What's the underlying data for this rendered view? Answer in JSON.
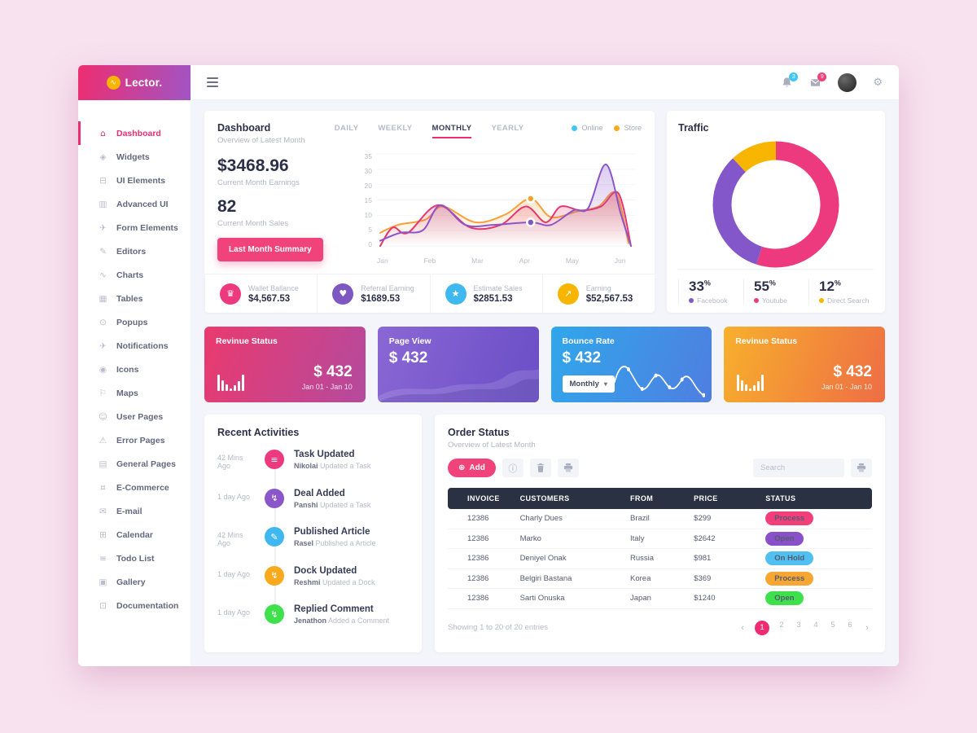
{
  "app": {
    "logo_text": "Lector."
  },
  "header": {
    "badge_notifications": "3",
    "badge_messages": "9"
  },
  "sidebar": {
    "items": [
      {
        "label": "Dashboard",
        "glyph": "⌂",
        "icon": "home-icon",
        "class": "active"
      },
      {
        "label": "Widgets",
        "glyph": "◈",
        "icon": "widgets-icon"
      },
      {
        "label": "UI Elements",
        "glyph": "⊟",
        "icon": "ui-elements-icon"
      },
      {
        "label": "Advanced UI",
        "glyph": "▥",
        "icon": "chart-bar-icon"
      },
      {
        "label": "Form Elements",
        "glyph": "✈",
        "icon": "paper-plane-icon"
      },
      {
        "label": "Editors",
        "glyph": "✎",
        "icon": "edit-icon"
      },
      {
        "label": "Charts",
        "glyph": "∿",
        "icon": "line-chart-icon"
      },
      {
        "label": "Tables",
        "glyph": "▦",
        "icon": "table-icon"
      },
      {
        "label": "Popups",
        "glyph": "⊙",
        "icon": "search-icon"
      },
      {
        "label": "Notifications",
        "glyph": "✈",
        "icon": "send-icon"
      },
      {
        "label": "Icons",
        "glyph": "◉",
        "icon": "icons-icon"
      },
      {
        "label": "Maps",
        "glyph": "⚐",
        "icon": "map-pin-icon"
      },
      {
        "label": "User Pages",
        "glyph": "☺",
        "icon": "user-icon"
      },
      {
        "label": "Error Pages",
        "glyph": "⚠",
        "icon": "error-icon"
      },
      {
        "label": "General Pages",
        "glyph": "▤",
        "icon": "file-icon"
      },
      {
        "label": "E-Commerce",
        "glyph": "¤",
        "icon": "cart-icon"
      },
      {
        "label": "E-mail",
        "glyph": "✉",
        "icon": "mail-icon"
      },
      {
        "label": "Calendar",
        "glyph": "⊞",
        "icon": "calendar-icon"
      },
      {
        "label": "Todo List",
        "glyph": "≡",
        "icon": "todo-list-icon"
      },
      {
        "label": "Gallery",
        "glyph": "▣",
        "icon": "gallery-icon"
      },
      {
        "label": "Documentation",
        "glyph": "⊡",
        "icon": "docs-icon"
      }
    ]
  },
  "dashboard": {
    "title": "Dashboard",
    "subtitle": "Overview of Latest Month",
    "tabs": [
      {
        "label": "DAILY"
      },
      {
        "label": "WEEKLY"
      },
      {
        "label": "MONTHLY",
        "class": "active"
      },
      {
        "label": "YEARLY"
      }
    ],
    "legend": [
      {
        "label": "Online",
        "color": "#3fc6f1"
      },
      {
        "label": "Store",
        "color": "#f8a91c"
      }
    ],
    "earnings_value": "$3468.96",
    "earnings_label": "Current Month Earnings",
    "sales_value": "82",
    "sales_label": "Current Month Sales",
    "summary_button": "Last Month Summary",
    "ministats": [
      {
        "icon": "crown-icon",
        "glyph": "♛",
        "color": "#ed3a7f",
        "label": "Wallet Ballance",
        "value": "$4,567.53"
      },
      {
        "icon": "heart-icon",
        "glyph": "♥",
        "color": "#7e57c2",
        "label": "Referral Earning",
        "value": "$1689.53"
      },
      {
        "icon": "magic-wand-icon",
        "glyph": "★",
        "color": "#3fb8ef",
        "label": "Estimate Sales",
        "value": "$2851.53"
      },
      {
        "icon": "earning-chart-icon",
        "glyph": "↗",
        "color": "#f8b500",
        "label": "Earning",
        "value": "$52,567.53"
      }
    ]
  },
  "chart_data": [
    {
      "type": "line",
      "title": "Dashboard — Overview of Latest Month",
      "x": [
        "Jan",
        "Feb",
        "Mar",
        "Apr",
        "May",
        "Jun"
      ],
      "ylim": [
        0,
        35
      ],
      "yticks_display": [
        "35",
        "30",
        "20",
        "15",
        "10",
        "5",
        "0"
      ],
      "grid": true,
      "legend_position": "top-right",
      "series": [
        {
          "name": "Store",
          "color": "#f7a03c",
          "values": [
            5,
            10,
            9,
            18,
            13,
            20
          ],
          "detail": [
            [
              0,
              5
            ],
            [
              0.07,
              8
            ],
            [
              0.18,
              10
            ],
            [
              0.25,
              15
            ],
            [
              0.38,
              9
            ],
            [
              0.5,
              12
            ],
            [
              0.6,
              18
            ],
            [
              0.68,
              11
            ],
            [
              0.78,
              13
            ],
            [
              0.87,
              15
            ],
            [
              0.94,
              20
            ],
            [
              0.99,
              1
            ]
          ]
        },
        {
          "name": "Online",
          "color": "#e8356d",
          "values": [
            0,
            15,
            7,
            15,
            14,
            20
          ],
          "detail": [
            [
              0,
              0
            ],
            [
              0.05,
              7
            ],
            [
              0.11,
              5
            ],
            [
              0.23,
              15.5
            ],
            [
              0.36,
              7
            ],
            [
              0.48,
              8
            ],
            [
              0.58,
              15
            ],
            [
              0.66,
              9
            ],
            [
              0.72,
              15
            ],
            [
              0.8,
              13.5
            ],
            [
              0.88,
              15
            ],
            [
              0.95,
              20
            ],
            [
              1,
              0
            ]
          ]
        },
        {
          "name": "Trend",
          "color": "#8a56c9",
          "values": [
            2,
            15,
            8,
            9,
            14,
            31
          ],
          "detail": [
            [
              0,
              2
            ],
            [
              0.08,
              5
            ],
            [
              0.17,
              6
            ],
            [
              0.24,
              15.5
            ],
            [
              0.34,
              8
            ],
            [
              0.45,
              8
            ],
            [
              0.6,
              9
            ],
            [
              0.68,
              8
            ],
            [
              0.77,
              13.5
            ],
            [
              0.83,
              14.5
            ],
            [
              0.9,
              31
            ],
            [
              0.96,
              12
            ],
            [
              1,
              0
            ]
          ]
        }
      ],
      "markers": [
        {
          "x": 0.6,
          "value": 18,
          "color": "#f0a22e"
        },
        {
          "x": 0.6,
          "value": 9,
          "color": "#7e57c2"
        }
      ]
    },
    {
      "type": "pie",
      "title": "Traffic",
      "labels": [
        "Facebook",
        "Youtube",
        "Direct Search"
      ],
      "values": [
        33,
        55,
        12
      ],
      "colors": [
        "#8356c9",
        "#ed3a7f",
        "#f8b500"
      ],
      "draw_order": [
        1,
        0,
        2
      ],
      "segments": [
        {
          "label": "Facebook",
          "pct": "33",
          "color": "#8356c9"
        },
        {
          "label": "Youtube",
          "pct": "55",
          "color": "#ed3a7f"
        },
        {
          "label": "Direct Search",
          "pct": "12",
          "color": "#f8b500"
        }
      ]
    }
  ],
  "traffic": {
    "title": "Traffic",
    "percent_sign": "%"
  },
  "cards": [
    {
      "title": "Revinue Status",
      "amount": "$ 432",
      "period": "Jan 01 - Jan 10",
      "gradient": "linear-gradient(110deg,#ea3a6e,#b44a9e)"
    },
    {
      "title": "Page View",
      "amount": "$ 432",
      "gradient": "linear-gradient(110deg,#8a67d4,#6a4ec6)"
    },
    {
      "title": "Bounce Rate",
      "amount": "$ 432",
      "select_value": "Monthly",
      "gradient": "linear-gradient(110deg,#30a7eb,#4f7ee0)"
    },
    {
      "title": "Revinue Status",
      "amount": "$ 432",
      "period": "Jan 01 - Jan 10",
      "gradient": "linear-gradient(110deg,#f7b02c,#ee6d45)"
    }
  ],
  "activities": {
    "title": "Recent Activities",
    "items": [
      {
        "time": "42 Mins Ago",
        "icon": "task-list-icon",
        "glyph": "≡",
        "color": "#ed3a7f",
        "title": "Task Updated",
        "by": "Nikolai",
        "desc": " Updated a Task"
      },
      {
        "time": "1 day Ago",
        "icon": "lightning-icon",
        "glyph": "↯",
        "color": "#8a56c9",
        "title": "Deal Added",
        "by": "Panshi",
        "desc": " Updated a Task"
      },
      {
        "time": "42 Mins Ago",
        "icon": "edit-icon",
        "glyph": "✎",
        "color": "#3fb8ef",
        "title": "Published Article",
        "by": "Rasel",
        "desc": " Published a Article"
      },
      {
        "time": "1 day Ago",
        "icon": "lightning-icon",
        "glyph": "↯",
        "color": "#f8a91c",
        "title": "Dock Updated",
        "by": "Reshmi",
        "desc": " Updated a Dock"
      },
      {
        "time": "1 day Ago",
        "icon": "lightning-icon",
        "glyph": "↯",
        "color": "#3ee14b",
        "title": "Replied Comment",
        "by": "Jenathon",
        "desc": " Added a Comment"
      }
    ]
  },
  "orders": {
    "title": "Order Status",
    "subtitle": "Overview of Latest Month",
    "add_label": "Add",
    "add_plus": "⊕",
    "info_glyph": "ⓘ",
    "search_placeholder": "Search",
    "columns": [
      "INVOICE",
      "CUSTOMERS",
      "FROM",
      "PRICE",
      "STATUS"
    ],
    "rows": [
      {
        "invoice": "12386",
        "customer": "Charly Dues",
        "from": "Brazil",
        "price": "$299",
        "status": "Process",
        "color": "#f23f79"
      },
      {
        "invoice": "12386",
        "customer": "Marko",
        "from": "Italy",
        "price": "$2642",
        "status": "Open",
        "color": "#8950c9"
      },
      {
        "invoice": "12386",
        "customer": "Deniyel Onak",
        "from": "Russia",
        "price": "$981",
        "status": "On Hold",
        "color": "#4fc0f0"
      },
      {
        "invoice": "12386",
        "customer": "Belgiri Bastana",
        "from": "Korea",
        "price": "$369",
        "status": "Process",
        "color": "#f7a731"
      },
      {
        "invoice": "12386",
        "customer": "Sarti Onuska",
        "from": "Japan",
        "price": "$1240",
        "status": "Open",
        "color": "#3ee14b"
      }
    ],
    "footer": "Showing 1 to 20 of 20 entries",
    "pagination": {
      "prev": "‹",
      "next": "›",
      "pages": [
        {
          "label": "1",
          "class": "active"
        },
        {
          "label": "2"
        },
        {
          "label": "3"
        },
        {
          "label": "4"
        },
        {
          "label": "5"
        },
        {
          "label": "6"
        }
      ]
    }
  }
}
